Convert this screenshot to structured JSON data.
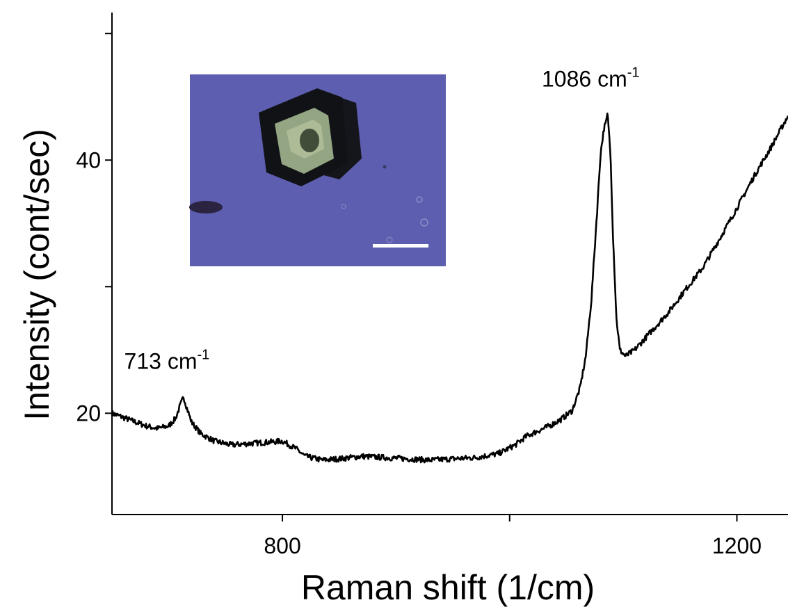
{
  "chart_data": {
    "type": "line",
    "xlabel": "Raman shift (1/cm)",
    "ylabel": "Intensity (cont/sec)",
    "xlim": [
      650,
      1245
    ],
    "ylim": [
      12,
      51
    ],
    "x_ticks": [
      {
        "value": 800,
        "label": "800"
      },
      {
        "value": 1000,
        "label": ""
      },
      {
        "value": 1200,
        "label": "1200"
      }
    ],
    "y_ticks": [
      {
        "value": 20,
        "label": "20"
      },
      {
        "value": 30,
        "label": ""
      },
      {
        "value": 40,
        "label": "40"
      },
      {
        "value": 50,
        "label": ""
      }
    ],
    "annotations": [
      {
        "x": 713,
        "text": "713 cm",
        "sup": "-1"
      },
      {
        "x": 1086,
        "text": "1086 cm",
        "sup": "-1"
      }
    ],
    "inset": {
      "background": "#5e5eb0",
      "content": "optical micrograph of a crystal with a white scale bar"
    },
    "series": [
      {
        "color": "#000000",
        "x": [
          650,
          665,
          680,
          690,
          700,
          706,
          710,
          713,
          716,
          720,
          728,
          740,
          755,
          770,
          785,
          800,
          812,
          820,
          835,
          850,
          870,
          890,
          910,
          930,
          950,
          970,
          990,
          1005,
          1015,
          1025,
          1035,
          1045,
          1055,
          1062,
          1067,
          1072,
          1077,
          1080,
          1083,
          1085,
          1086,
          1087,
          1089,
          1091,
          1094,
          1097,
          1102,
          1110,
          1125,
          1140,
          1155,
          1170,
          1185,
          1200,
          1215,
          1230,
          1245
        ],
        "y": [
          20.0,
          19.5,
          19.0,
          18.8,
          19.0,
          19.6,
          20.6,
          21.3,
          20.4,
          19.3,
          18.4,
          17.8,
          17.5,
          17.6,
          17.7,
          17.8,
          17.2,
          16.6,
          16.3,
          16.4,
          16.6,
          16.5,
          16.4,
          16.3,
          16.4,
          16.5,
          16.8,
          17.5,
          18.2,
          18.6,
          19.0,
          19.5,
          20.2,
          22.0,
          24.5,
          29.0,
          36.0,
          40.5,
          42.5,
          43.0,
          43.6,
          42.8,
          40.0,
          34.0,
          27.5,
          25.0,
          24.5,
          25.0,
          26.5,
          28.0,
          29.8,
          31.5,
          33.8,
          36.2,
          38.7,
          41.0,
          43.5
        ]
      }
    ]
  }
}
